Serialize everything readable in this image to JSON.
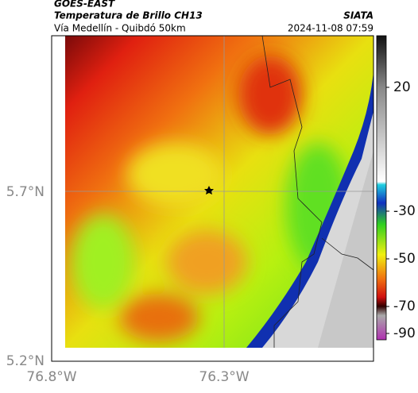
{
  "header": {
    "source": "GOES-EAST",
    "title": "Temperatura de Brillo CH13",
    "org": "SIATA",
    "subtitle": "Vía Medellín - Quibdó 50km",
    "datetime": "2024-11-08 07:59"
  },
  "axes": {
    "y_labels": [
      "5.7°N",
      "5.2°N"
    ],
    "x_labels": [
      "76.8°W",
      "76.3°W"
    ]
  },
  "colorbar": {
    "ticks": [
      20,
      -30,
      -50,
      -70,
      -90
    ]
  }
}
